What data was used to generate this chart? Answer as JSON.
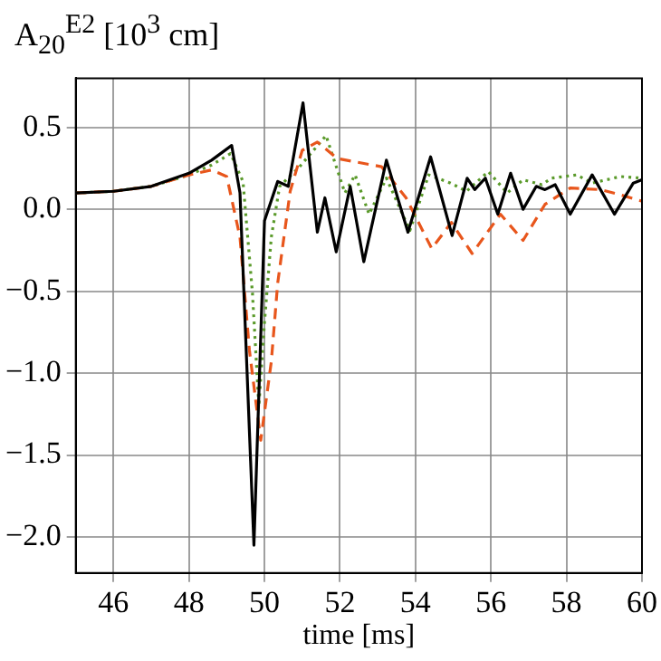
{
  "chart_data": {
    "type": "line",
    "ylabel": "A$_{20}$$^{E2}$ [10$^{3}$ cm]",
    "xlabel": "time [ms]",
    "xlim": [
      45,
      60
    ],
    "xticks": [
      46,
      48,
      50,
      52,
      54,
      56,
      58,
      60
    ],
    "ylim": [
      -2.22,
      0.8
    ],
    "yticks": [
      {
        "value": -2,
        "label": "−2.0"
      },
      {
        "value": -1.5,
        "label": "−1.5"
      },
      {
        "value": -1,
        "label": "−1.0"
      },
      {
        "value": -0.5,
        "label": "−0.5"
      },
      {
        "value": 0,
        "label": "0.0"
      },
      {
        "value": 0.5,
        "label": "0.5"
      }
    ],
    "grid": true,
    "marker": "none",
    "series": [
      {
        "color": "#000000",
        "line_style": "solid",
        "x": [
          45,
          46,
          47,
          48,
          48.6,
          49.13,
          49.35,
          49.72,
          50.0,
          50.35,
          50.63,
          51.02,
          51.4,
          51.6,
          51.9,
          52.27,
          52.63,
          53.23,
          53.8,
          54.4,
          54.97,
          55.37,
          55.57,
          55.85,
          56.18,
          56.52,
          56.85,
          57.2,
          57.43,
          57.7,
          58.1,
          58.68,
          59.27,
          59.77,
          60
        ],
        "values": [
          0.1,
          0.11,
          0.14,
          0.22,
          0.3,
          0.39,
          0.1,
          -2.05,
          -0.07,
          0.17,
          0.14,
          0.65,
          -0.14,
          0.07,
          -0.26,
          0.14,
          -0.32,
          0.3,
          -0.14,
          0.32,
          -0.16,
          0.19,
          0.12,
          0.19,
          -0.03,
          0.22,
          0.0,
          0.14,
          0.12,
          0.15,
          -0.03,
          0.21,
          -0.03,
          0.16,
          0.18
        ]
      },
      {
        "color": "#e8561c",
        "line_style": "dashed",
        "x": [
          45,
          46,
          47,
          48,
          48.6,
          49.0,
          49.35,
          49.6,
          49.9,
          50.18,
          50.35,
          50.68,
          51.0,
          51.4,
          51.93,
          53.1,
          53.75,
          54.43,
          54.95,
          55.5,
          56.25,
          56.85,
          57.43,
          58.1,
          58.9,
          59.4,
          60
        ],
        "values": [
          0.1,
          0.11,
          0.14,
          0.21,
          0.24,
          0.2,
          -0.17,
          -0.86,
          -1.41,
          -0.93,
          -0.45,
          0.11,
          0.36,
          0.41,
          0.31,
          0.26,
          0.07,
          -0.24,
          -0.08,
          -0.27,
          -0.03,
          -0.19,
          0.03,
          0.13,
          0.12,
          0.09,
          0.05
        ]
      },
      {
        "color": "#5a9a2a",
        "line_style": "dotted",
        "x": [
          45,
          46,
          47,
          48,
          48.6,
          49.1,
          49.43,
          49.68,
          49.85,
          50.0,
          50.18,
          50.4,
          50.93,
          51.63,
          52.13,
          52.4,
          52.77,
          53.23,
          53.85,
          54.35,
          54.93,
          55.35,
          55.93,
          56.43,
          56.85,
          57.35,
          57.6,
          58.27,
          58.68,
          59.43,
          60
        ],
        "values": [
          0.1,
          0.11,
          0.14,
          0.21,
          0.27,
          0.34,
          0.17,
          -0.51,
          -1.2,
          -0.69,
          -0.17,
          0.14,
          0.26,
          0.45,
          0.1,
          0.21,
          -0.03,
          0.19,
          -0.13,
          0.21,
          0.16,
          0.11,
          0.23,
          0.1,
          0.18,
          0.15,
          0.19,
          0.21,
          0.16,
          0.2,
          0.19
        ]
      }
    ]
  }
}
